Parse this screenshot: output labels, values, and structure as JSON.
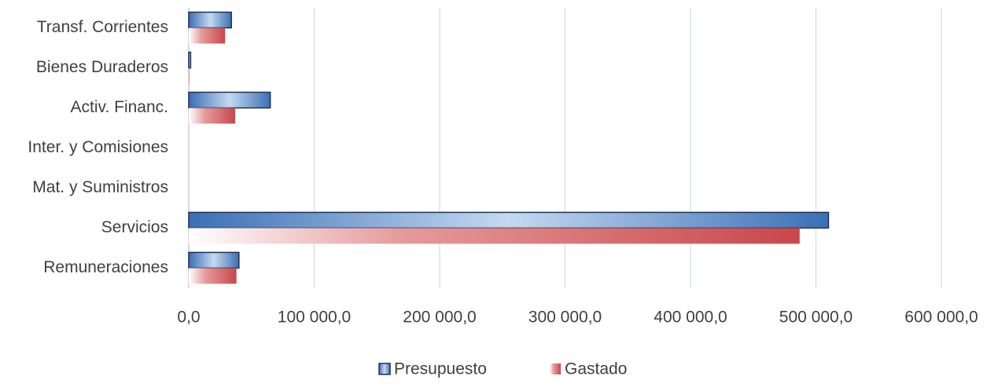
{
  "chart_data": {
    "type": "bar",
    "orientation": "horizontal",
    "categories": [
      "Transf. Corrientes",
      "Bienes Duraderos",
      "Activ. Financ.",
      "Inter. y Comisiones",
      "Mat. y Suministros",
      "Servicios",
      "Remuneraciones"
    ],
    "series": [
      {
        "name": "Presupuesto",
        "color": "#3a6fb5",
        "values": [
          34000,
          1500,
          65000,
          0,
          0,
          510000,
          40000
        ]
      },
      {
        "name": "Gastado",
        "color": "#c8474a",
        "values": [
          29000,
          500,
          37000,
          0,
          0,
          487000,
          38000
        ]
      }
    ],
    "xlim": [
      0,
      600000
    ],
    "xticks": [
      {
        "value": 0,
        "label": "0,0"
      },
      {
        "value": 100000,
        "label": "100 000,0"
      },
      {
        "value": 200000,
        "label": "200 000,0"
      },
      {
        "value": 300000,
        "label": "300 000,0"
      },
      {
        "value": 400000,
        "label": "400 000,0"
      },
      {
        "value": 500000,
        "label": "500 000,0"
      },
      {
        "value": 600000,
        "label": "600 000,0"
      }
    ],
    "grid": true,
    "legend": "bottom"
  }
}
